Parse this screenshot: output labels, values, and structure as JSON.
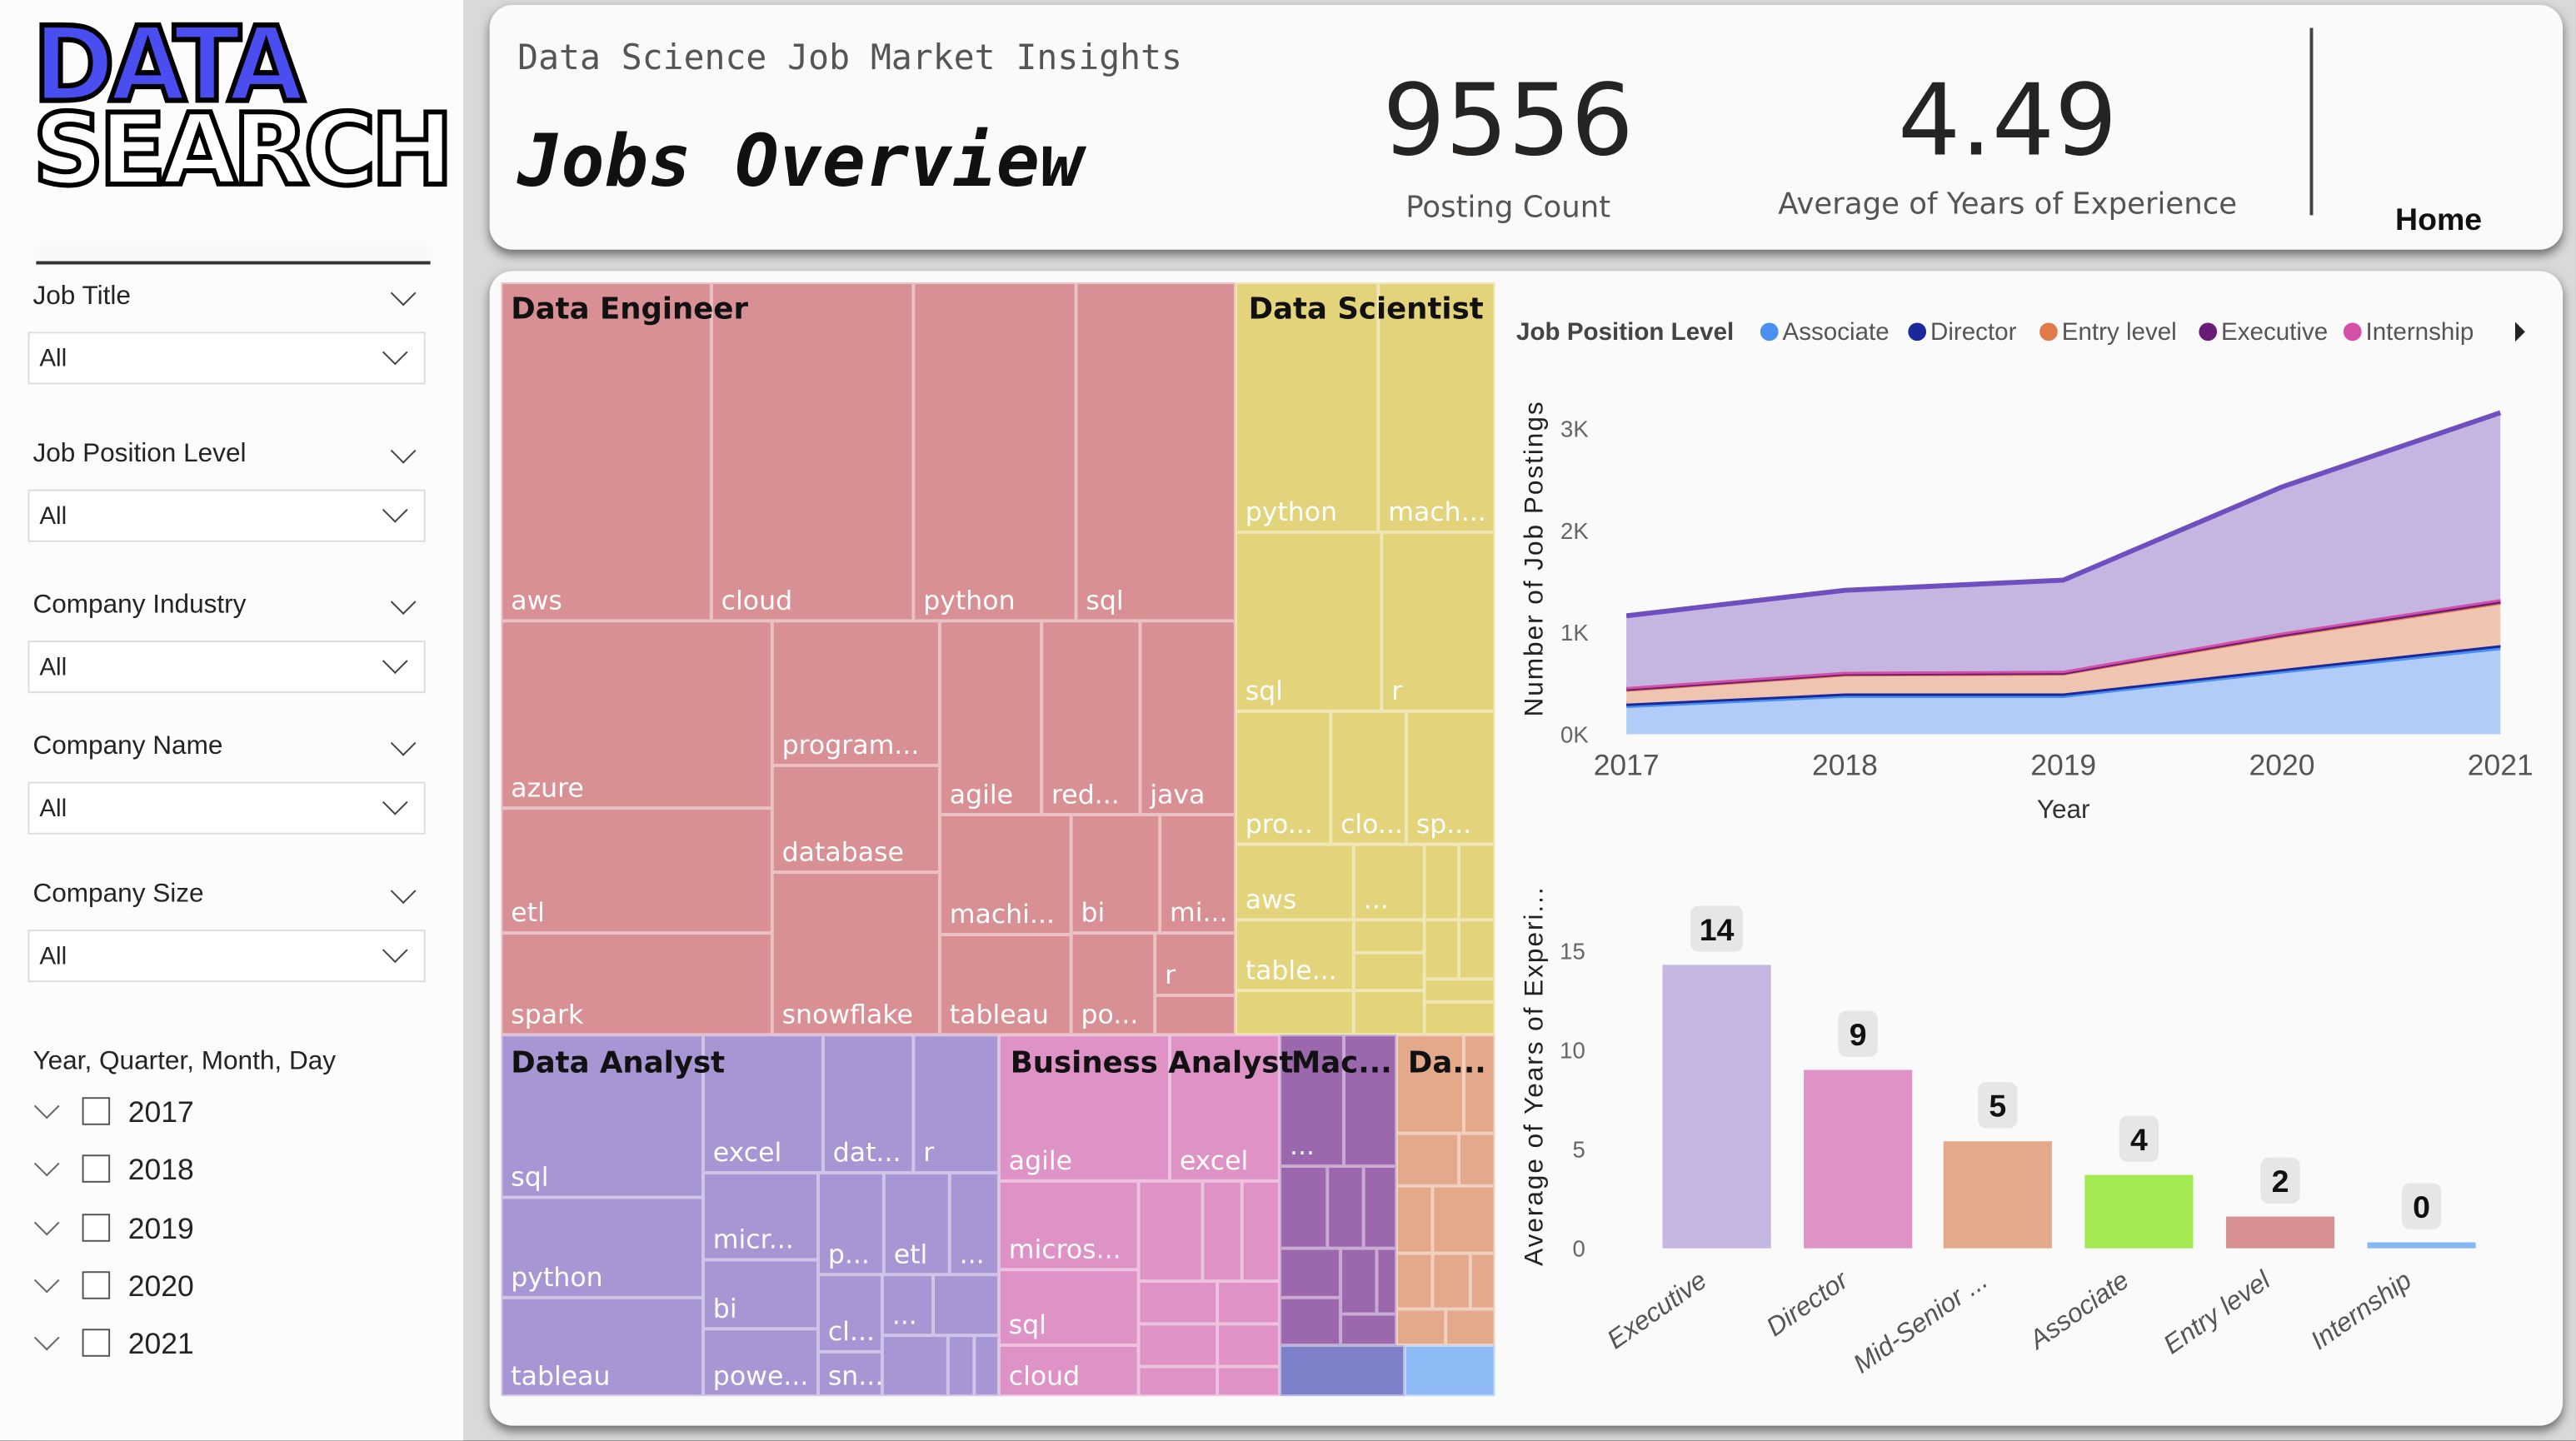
{
  "sidebar": {
    "logo": {
      "line1": "DATA",
      "line2": "SEARCH"
    },
    "filters": [
      {
        "label": "Job Title",
        "value": "All"
      },
      {
        "label": "Job Position Level",
        "value": "All"
      },
      {
        "label": "Company Industry",
        "value": "All"
      },
      {
        "label": "Company Name",
        "value": "All"
      },
      {
        "label": "Company Size",
        "value": "All"
      }
    ],
    "date_hierarchy": {
      "label": "Year, Quarter, Month, Day",
      "years": [
        "2017",
        "2018",
        "2019",
        "2020",
        "2021"
      ]
    }
  },
  "header": {
    "subtitle": "Data Science Job Market Insights",
    "title": "Jobs Overview",
    "kpis": [
      {
        "value": "9556",
        "label": "Posting Count"
      },
      {
        "value": "4.49",
        "label": "Average of Years of Experience"
      }
    ],
    "home_button": "Home"
  },
  "treemap": {
    "groups": [
      {
        "name": "Data Engineer",
        "color": "#d99094",
        "items": [
          "aws",
          "cloud",
          "python",
          "sql",
          "azure",
          "etl",
          "spark",
          "program...",
          "database",
          "snowflake",
          "agile",
          "red...",
          "java",
          "machi...",
          "tableau",
          "bi",
          "mi...",
          "po...",
          "r"
        ]
      },
      {
        "name": "Data Scientist",
        "color": "#e3d37a",
        "items": [
          "python",
          "mach...",
          "sql",
          "r",
          "pro...",
          "clo...",
          "sp...",
          "aws",
          "...",
          "table..."
        ]
      },
      {
        "name": "Data Analyst",
        "color": "#a895d4",
        "items": [
          "sql",
          "python",
          "tableau",
          "excel",
          "dat...",
          "r",
          "micr...",
          "bi",
          "powe...",
          "p...",
          "etl",
          "...",
          "cl...",
          "...",
          "sn..."
        ]
      },
      {
        "name": "Business Analyst",
        "color": "#df92c6",
        "items": [
          "agile",
          "excel",
          "micros...",
          "sql",
          "cloud"
        ]
      },
      {
        "name": "Mac...",
        "color": "#9b67ad",
        "items": [
          "..."
        ]
      },
      {
        "name": "Da...",
        "color": "#e4a98a",
        "items": []
      }
    ]
  },
  "chart_data": [
    {
      "type": "area",
      "stacked": true,
      "legend_title": "Job Position Level",
      "legend_position": "top",
      "xlabel": "Year",
      "ylabel": "Number of Job Postings",
      "x": [
        "2017",
        "2018",
        "2019",
        "2020",
        "2021"
      ],
      "yticks": [
        "0K",
        "1K",
        "2K",
        "3K"
      ],
      "ylim": [
        0,
        3000
      ],
      "series": [
        {
          "name": "Associate",
          "color": "#4a8ff0",
          "fill": "#b1cdf7",
          "values": [
            280,
            380,
            380,
            620,
            850
          ]
        },
        {
          "name": "Director",
          "color": "#1a2899",
          "fill": "#1a2899",
          "values": [
            20,
            20,
            20,
            20,
            25
          ]
        },
        {
          "name": "Entry level",
          "color": "#e07b49",
          "fill": "#efc4b0",
          "values": [
            140,
            190,
            200,
            330,
            420
          ]
        },
        {
          "name": "Executive",
          "color": "#6a1b7a",
          "fill": "#6a1b7a",
          "values": [
            8,
            8,
            8,
            10,
            12
          ]
        },
        {
          "name": "Internship",
          "color": "#d44fa8",
          "fill": "#d44fa8",
          "values": [
            15,
            15,
            15,
            18,
            20
          ]
        },
        {
          "color": "#6f4fc0",
          "fill": "#c4b6e0",
          "values": [
            700,
            800,
            890,
            1430,
            1830
          ]
        }
      ]
    },
    {
      "type": "bar",
      "xlabel": "",
      "ylabel": "Average of Years of Experi...",
      "categories": [
        "Executive",
        "Director",
        "Mid-Senior ...",
        "Associate",
        "Entry level",
        "Internship"
      ],
      "values": [
        14.3,
        9.0,
        5.4,
        3.7,
        1.6,
        0.3
      ],
      "data_labels": [
        "14",
        "9",
        "5",
        "4",
        "2",
        "0"
      ],
      "colors": [
        "#c5b7e2",
        "#df92c6",
        "#e4a98a",
        "#a2e952",
        "#d99094",
        "#85b8f5"
      ],
      "yticks": [
        "0",
        "5",
        "10",
        "15"
      ],
      "ylim": [
        0,
        16
      ]
    }
  ]
}
